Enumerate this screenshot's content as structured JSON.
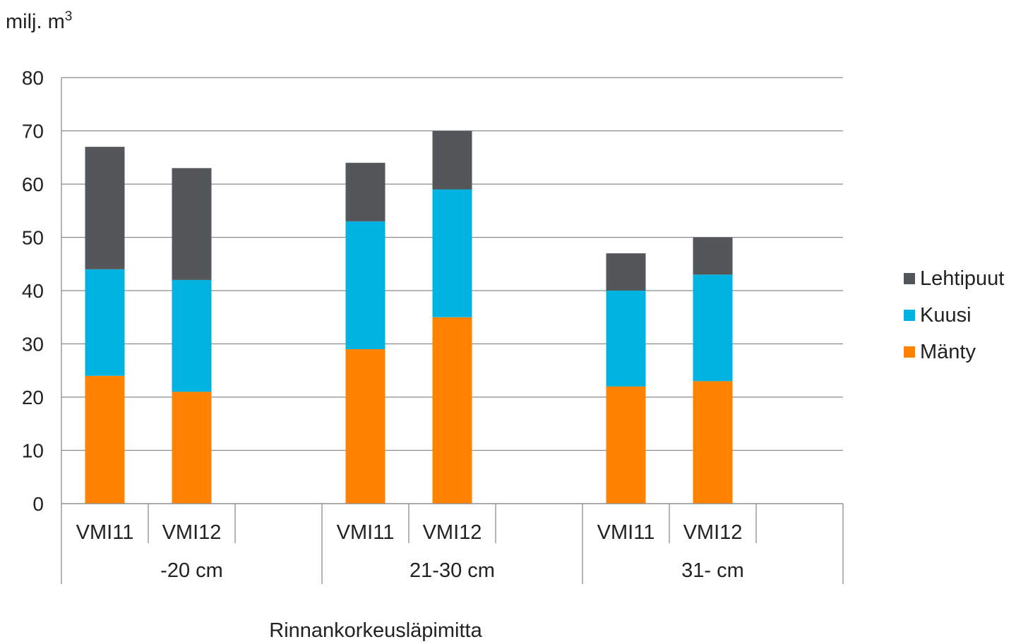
{
  "chart_data": {
    "type": "bar",
    "stacked": true,
    "ylabel": "milj. m",
    "ylabel_superscript": "3",
    "xlabel": "Rinnankorkeusläpimitta",
    "ylim": [
      0,
      80
    ],
    "yticks": [
      0,
      10,
      20,
      30,
      40,
      50,
      60,
      70,
      80
    ],
    "grid": true,
    "legend_position": "right",
    "groups": [
      {
        "label": "-20 cm",
        "categories": [
          "VMI11",
          "VMI12"
        ]
      },
      {
        "label": "21-30 cm",
        "categories": [
          "VMI11",
          "VMI12"
        ]
      },
      {
        "label": "31- cm",
        "categories": [
          "VMI11",
          "VMI12"
        ]
      }
    ],
    "series": [
      {
        "name": "Mänty",
        "color": "#FF8200",
        "values": [
          24,
          21,
          29,
          35,
          22,
          23
        ]
      },
      {
        "name": "Kuusi",
        "color": "#00B3E0",
        "values": [
          20,
          21,
          24,
          24,
          18,
          20
        ]
      },
      {
        "name": "Lehtipuut",
        "color": "#53575A",
        "values": [
          23,
          21,
          11,
          11,
          7,
          7
        ]
      }
    ]
  }
}
